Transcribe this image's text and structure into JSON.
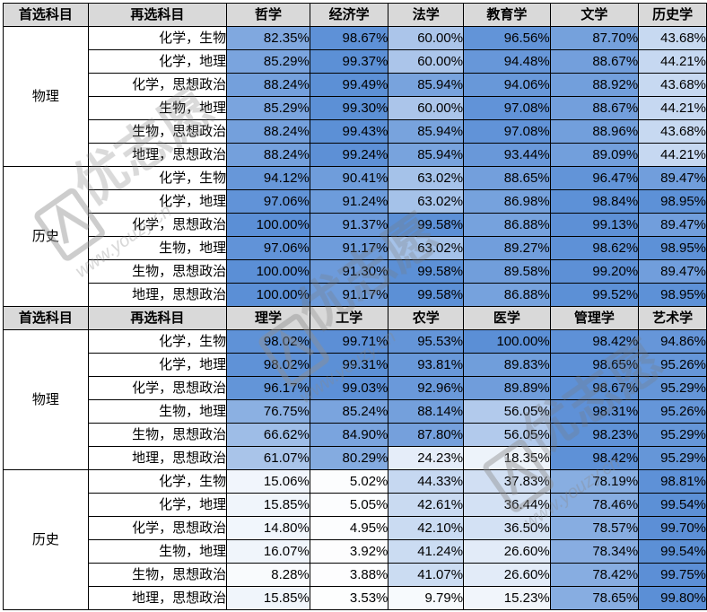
{
  "sections": [
    {
      "header": {
        "first": "首选科目",
        "second": "再选科目",
        "majors": [
          "哲学",
          "经济学",
          "法学",
          "教育学",
          "文学",
          "历史学"
        ]
      },
      "groups": [
        {
          "first": "物理",
          "rows": [
            {
              "second": "化学，生物",
              "values": [
                "82.35%",
                "98.67%",
                "60.00%",
                "96.56%",
                "87.70%",
                "43.68%"
              ]
            },
            {
              "second": "化学，地理",
              "values": [
                "85.29%",
                "99.37%",
                "60.00%",
                "94.48%",
                "88.67%",
                "44.21%"
              ]
            },
            {
              "second": "化学，思想政治",
              "values": [
                "88.24%",
                "99.49%",
                "85.94%",
                "94.06%",
                "88.92%",
                "43.68%"
              ]
            },
            {
              "second": "生物，地理",
              "values": [
                "85.29%",
                "99.30%",
                "60.00%",
                "97.08%",
                "88.67%",
                "44.21%"
              ]
            },
            {
              "second": "生物，思想政治",
              "values": [
                "88.24%",
                "99.43%",
                "85.94%",
                "97.08%",
                "88.96%",
                "43.68%"
              ]
            },
            {
              "second": "地理，思想政治",
              "values": [
                "88.24%",
                "99.24%",
                "85.94%",
                "93.44%",
                "89.09%",
                "44.21%"
              ]
            }
          ]
        },
        {
          "first": "历史",
          "rows": [
            {
              "second": "化学，生物",
              "values": [
                "94.12%",
                "90.41%",
                "63.02%",
                "88.65%",
                "96.47%",
                "89.47%"
              ]
            },
            {
              "second": "化学，地理",
              "values": [
                "97.06%",
                "91.24%",
                "63.02%",
                "86.98%",
                "98.84%",
                "98.95%"
              ]
            },
            {
              "second": "化学，思想政治",
              "values": [
                "100.00%",
                "91.37%",
                "99.58%",
                "86.88%",
                "99.13%",
                "89.47%"
              ]
            },
            {
              "second": "生物，地理",
              "values": [
                "97.06%",
                "91.17%",
                "63.02%",
                "89.27%",
                "98.62%",
                "98.95%"
              ]
            },
            {
              "second": "生物，思想政治",
              "values": [
                "100.00%",
                "91.30%",
                "99.58%",
                "89.58%",
                "99.20%",
                "89.47%"
              ]
            },
            {
              "second": "地理，思想政治",
              "values": [
                "100.00%",
                "91.17%",
                "99.58%",
                "86.88%",
                "99.52%",
                "98.95%"
              ]
            }
          ]
        }
      ]
    },
    {
      "header": {
        "first": "首选科目",
        "second": "再选科目",
        "majors": [
          "理学",
          "工学",
          "农学",
          "医学",
          "管理学",
          "艺术学"
        ]
      },
      "groups": [
        {
          "first": "物理",
          "rows": [
            {
              "second": "化学，生物",
              "values": [
                "98.02%",
                "99.71%",
                "95.53%",
                "100.00%",
                "98.42%",
                "94.86%"
              ]
            },
            {
              "second": "化学，地理",
              "values": [
                "98.02%",
                "99.31%",
                "93.81%",
                "89.83%",
                "98.65%",
                "95.26%"
              ]
            },
            {
              "second": "化学，思想政治",
              "values": [
                "96.17%",
                "99.03%",
                "92.96%",
                "89.89%",
                "98.67%",
                "95.29%"
              ]
            },
            {
              "second": "生物，地理",
              "values": [
                "76.75%",
                "85.24%",
                "88.14%",
                "56.05%",
                "98.31%",
                "95.26%"
              ]
            },
            {
              "second": "生物，思想政治",
              "values": [
                "66.62%",
                "84.90%",
                "87.80%",
                "56.05%",
                "98.23%",
                "95.29%"
              ]
            },
            {
              "second": "地理，思想政治",
              "values": [
                "61.07%",
                "80.29%",
                "24.23%",
                "18.35%",
                "98.42%",
                "95.29%"
              ]
            }
          ]
        },
        {
          "first": "历史",
          "rows": [
            {
              "second": "化学，生物",
              "values": [
                "15.06%",
                "5.02%",
                "44.33%",
                "37.83%",
                "78.19%",
                "98.81%"
              ]
            },
            {
              "second": "化学，地理",
              "values": [
                "15.85%",
                "5.05%",
                "42.61%",
                "36.44%",
                "78.46%",
                "99.54%"
              ]
            },
            {
              "second": "化学，思想政治",
              "values": [
                "14.80%",
                "4.95%",
                "42.10%",
                "36.50%",
                "78.57%",
                "99.70%"
              ]
            },
            {
              "second": "生物，地理",
              "values": [
                "16.07%",
                "3.92%",
                "41.24%",
                "26.60%",
                "78.34%",
                "99.54%"
              ]
            },
            {
              "second": "生物，思想政治",
              "values": [
                "8.28%",
                "3.88%",
                "41.07%",
                "26.60%",
                "78.42%",
                "99.75%"
              ]
            },
            {
              "second": "地理，思想政治",
              "values": [
                "15.85%",
                "3.53%",
                "9.79%",
                "15.23%",
                "78.65%",
                "99.80%"
              ]
            }
          ]
        }
      ]
    }
  ],
  "colors": {
    "header_bg": "#d9d9d9",
    "scale_low": "#ffffff",
    "scale_high": "#5b8fd6",
    "border": "#000000"
  },
  "watermark": {
    "logo_text": "优志愿",
    "url_text": "www.youzy.cn",
    "color": "#9a9a9a"
  }
}
